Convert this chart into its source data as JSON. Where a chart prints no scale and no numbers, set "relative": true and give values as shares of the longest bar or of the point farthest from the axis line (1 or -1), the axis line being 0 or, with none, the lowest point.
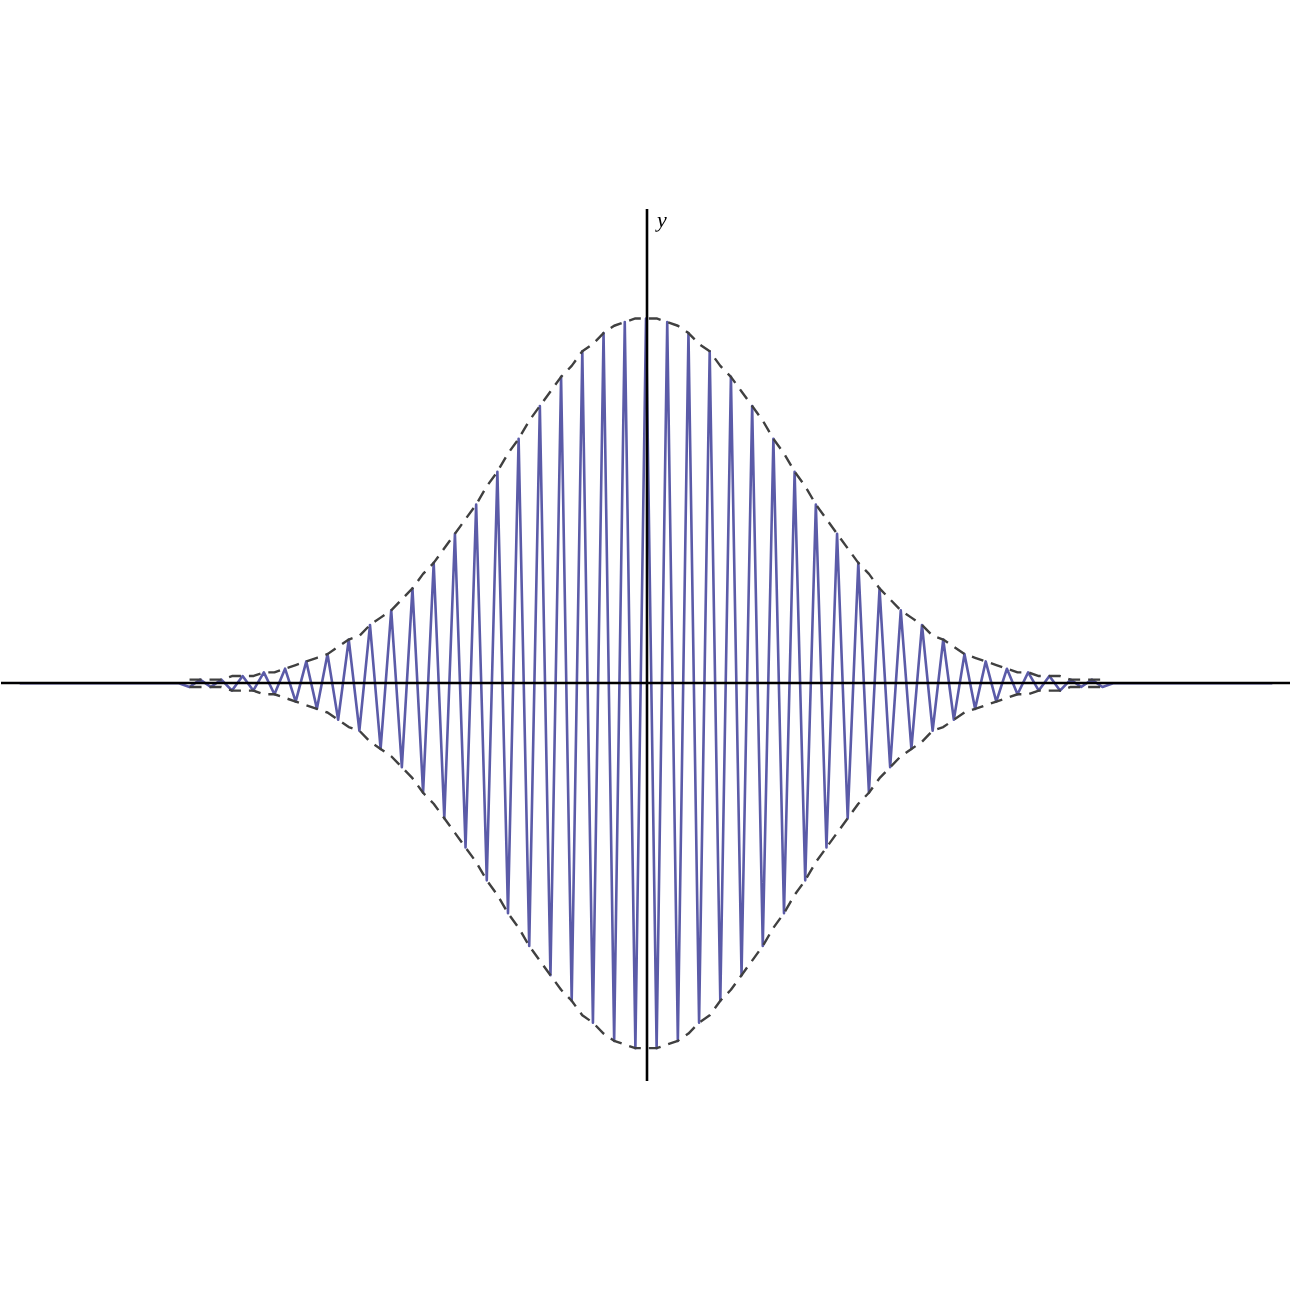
{
  "chart_data": {
    "type": "line",
    "ylabel": "y",
    "relative": true,
    "marker": "none",
    "categories": [
      null,
      null,
      null,
      null,
      null,
      null,
      null,
      null,
      null,
      null,
      null,
      null,
      null,
      null,
      null,
      null,
      null,
      null,
      null,
      null,
      null,
      null,
      null,
      null,
      null,
      null,
      null,
      null,
      null,
      null,
      null,
      null,
      null,
      null,
      null,
      null,
      null,
      null,
      null,
      null,
      null,
      null,
      null,
      null,
      null,
      null,
      null,
      null,
      null,
      null,
      null,
      null,
      null,
      null,
      null,
      null,
      null,
      null,
      null,
      null,
      null,
      null,
      null,
      null,
      null,
      null,
      null,
      null,
      null,
      null,
      null,
      null,
      null,
      null,
      null,
      null,
      null,
      null,
      null,
      null,
      null,
      null,
      null,
      null,
      null,
      null,
      null,
      null,
      null,
      null,
      null,
      null,
      null,
      null,
      null,
      null,
      null,
      null,
      null,
      null,
      null,
      null,
      null,
      null,
      null,
      null,
      null,
      null,
      null,
      null,
      null,
      null,
      null,
      null,
      null,
      null,
      null,
      null,
      null
    ],
    "series": [
      {
        "color": "#5b5ba8",
        "line_style": "solid",
        "values": [
          0,
          0,
          0,
          0,
          0,
          0,
          0,
          0,
          0,
          0,
          0,
          0,
          0,
          0,
          0,
          0,
          -0.01,
          0.01,
          -0.01,
          0.01,
          -0.02,
          0.02,
          -0.02,
          0.03,
          -0.03,
          0.04,
          -0.05,
          0.06,
          -0.07,
          0.08,
          -0.1,
          0.12,
          -0.13,
          0.16,
          -0.18,
          0.2,
          -0.23,
          0.26,
          -0.3,
          0.33,
          -0.37,
          0.41,
          -0.45,
          0.49,
          -0.54,
          0.58,
          -0.63,
          0.67,
          -0.72,
          0.76,
          -0.8,
          0.84,
          -0.87,
          0.91,
          -0.93,
          0.96,
          -0.98,
          0.99,
          -1,
          1,
          -1,
          0.99,
          -0.98,
          0.96,
          -0.93,
          0.91,
          -0.87,
          0.84,
          -0.8,
          0.76,
          -0.72,
          0.67,
          -0.63,
          0.58,
          -0.54,
          0.49,
          -0.45,
          0.41,
          -0.37,
          0.33,
          -0.3,
          0.26,
          -0.23,
          0.2,
          -0.18,
          0.16,
          -0.13,
          0.12,
          -0.1,
          0.08,
          -0.07,
          0.06,
          -0.05,
          0.04,
          -0.03,
          0.03,
          -0.02,
          0.02,
          -0.02,
          0.01,
          -0.01,
          0.01,
          -0.01,
          0,
          0,
          0,
          0,
          0,
          0,
          0,
          0,
          0,
          0,
          0,
          0,
          0,
          0,
          0,
          0
        ]
      },
      {
        "color": "#404040",
        "line_style": "dashed",
        "values": [
          null,
          null,
          null,
          null,
          null,
          null,
          null,
          null,
          null,
          null,
          null,
          null,
          null,
          null,
          null,
          null,
          0.01,
          0.01,
          0.01,
          0.01,
          0.02,
          0.02,
          0.02,
          0.03,
          0.03,
          0.04,
          0.05,
          0.06,
          0.07,
          0.08,
          0.1,
          0.12,
          0.13,
          0.16,
          0.18,
          0.2,
          0.23,
          0.26,
          0.3,
          0.33,
          0.37,
          0.41,
          0.45,
          0.49,
          0.54,
          0.58,
          0.63,
          0.67,
          0.72,
          0.76,
          0.8,
          0.84,
          0.87,
          0.91,
          0.93,
          0.96,
          0.98,
          0.99,
          1,
          1,
          1,
          0.99,
          0.98,
          0.96,
          0.93,
          0.91,
          0.87,
          0.84,
          0.8,
          0.76,
          0.72,
          0.67,
          0.63,
          0.58,
          0.54,
          0.49,
          0.45,
          0.41,
          0.37,
          0.33,
          0.3,
          0.26,
          0.23,
          0.2,
          0.18,
          0.16,
          0.13,
          0.12,
          0.1,
          0.08,
          0.07,
          0.06,
          0.05,
          0.04,
          0.03,
          0.03,
          0.02,
          0.02,
          0.02,
          0.01,
          0.01,
          0.01,
          0.01,
          null,
          null,
          null,
          null,
          null,
          null,
          null,
          null,
          null,
          null,
          null,
          null,
          null,
          null,
          null,
          null
        ]
      },
      {
        "color": "#404040",
        "line_style": "dashed",
        "values": [
          null,
          null,
          null,
          null,
          null,
          null,
          null,
          null,
          null,
          null,
          null,
          null,
          null,
          null,
          null,
          null,
          -0.01,
          -0.01,
          -0.01,
          -0.01,
          -0.02,
          -0.02,
          -0.02,
          -0.03,
          -0.03,
          -0.04,
          -0.05,
          -0.06,
          -0.07,
          -0.08,
          -0.1,
          -0.12,
          -0.13,
          -0.16,
          -0.18,
          -0.2,
          -0.23,
          -0.26,
          -0.3,
          -0.33,
          -0.37,
          -0.41,
          -0.45,
          -0.49,
          -0.54,
          -0.58,
          -0.63,
          -0.67,
          -0.72,
          -0.76,
          -0.8,
          -0.84,
          -0.87,
          -0.91,
          -0.93,
          -0.96,
          -0.98,
          -0.99,
          -1,
          -1,
          -1,
          -0.99,
          -0.98,
          -0.96,
          -0.93,
          -0.91,
          -0.87,
          -0.84,
          -0.8,
          -0.76,
          -0.72,
          -0.67,
          -0.63,
          -0.58,
          -0.54,
          -0.49,
          -0.45,
          -0.41,
          -0.37,
          -0.33,
          -0.3,
          -0.26,
          -0.23,
          -0.2,
          -0.18,
          -0.16,
          -0.13,
          -0.12,
          -0.1,
          -0.08,
          -0.07,
          -0.06,
          -0.05,
          -0.04,
          -0.03,
          -0.03,
          -0.02,
          -0.02,
          -0.02,
          -0.01,
          -0.01,
          -0.01,
          -0.01,
          null,
          null,
          null,
          null,
          null,
          null,
          null,
          null,
          null,
          null,
          null,
          null,
          null,
          null,
          null,
          null
        ]
      }
    ]
  }
}
